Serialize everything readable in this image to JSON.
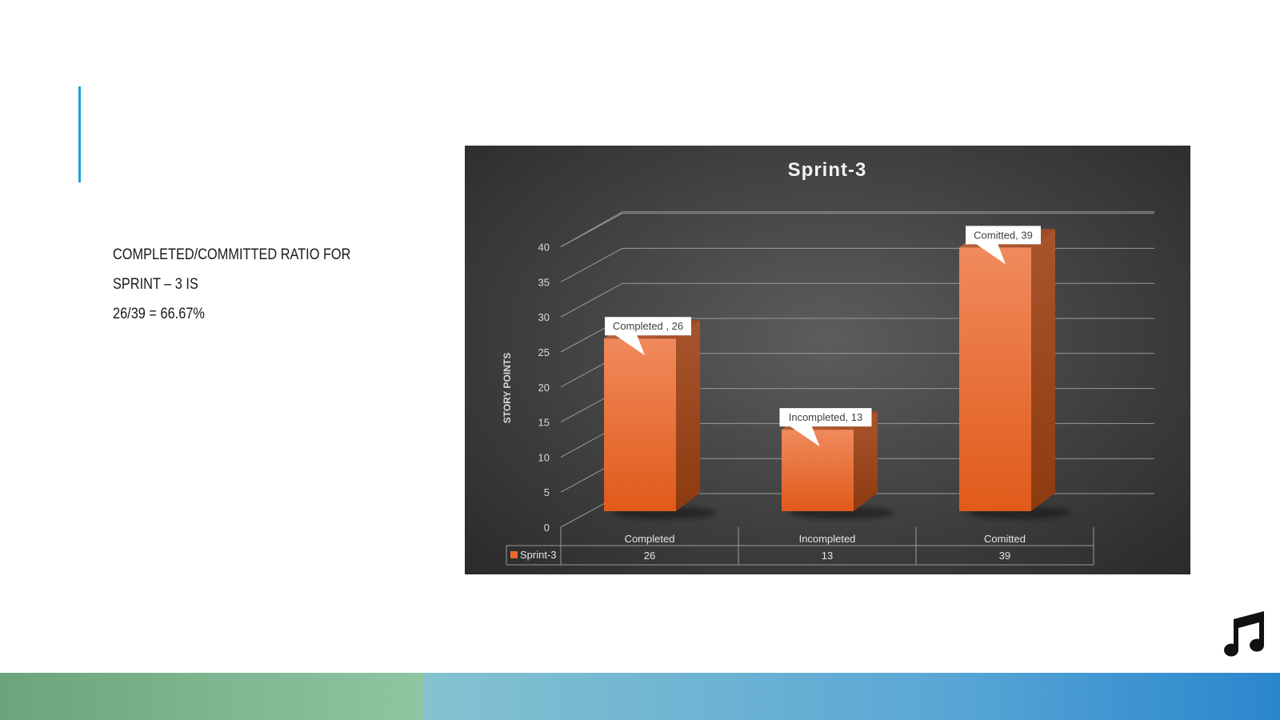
{
  "slide": {
    "body_text_line1": "COMPLETED/COMMITTED RATIO FOR SPRINT – 3 IS",
    "body_text_line2": "26/39 = 66.67%"
  },
  "chart_data": {
    "type": "bar",
    "title": "Sprint-3",
    "ylabel": "STORY POINTS",
    "xlabel": "",
    "categories": [
      "Completed",
      "Incompleted",
      "Comitted"
    ],
    "series": [
      {
        "name": "Sprint-3",
        "values": [
          26,
          13,
          39
        ],
        "color": "#ec6a2c"
      }
    ],
    "data_labels": [
      "Completed , 26",
      "Incompleted, 13",
      "Comitted, 39"
    ],
    "table_values": [
      "26",
      "13",
      "39"
    ],
    "yticks": [
      0,
      5,
      10,
      15,
      20,
      25,
      30,
      35,
      40
    ],
    "ylim": [
      0,
      40
    ],
    "grid": true,
    "legend": "data-table-left",
    "style": "3d-column",
    "background": "#3c3c3c"
  },
  "icons": {
    "music": "music-note-icon"
  },
  "colors": {
    "accent": "#1ea0d8",
    "bar": "#ec6a2c",
    "band_left": "#7bb690",
    "band_right": "#3b93d2"
  }
}
